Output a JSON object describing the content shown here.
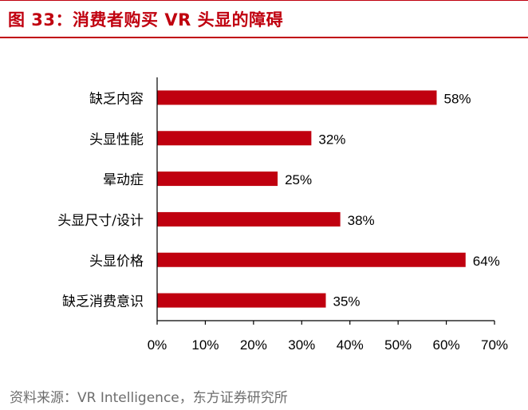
{
  "figure": {
    "title": "图 33：消费者购买 VR 头显的障碍",
    "source": "资料来源：VR Intelligence，东方证券研究所"
  },
  "colors": {
    "accent": "#c0000f",
    "bar": "#c0000f",
    "axis": "#000000",
    "source_text": "#6d6d6d"
  },
  "chart_data": {
    "type": "bar",
    "orientation": "horizontal",
    "categories": [
      "缺乏内容",
      "头显性能",
      "晕动症",
      "头显尺寸/设计",
      "头显价格",
      "缺乏消费意识"
    ],
    "values": [
      58,
      32,
      25,
      38,
      64,
      35
    ],
    "data_labels": [
      "58%",
      "32%",
      "25%",
      "38%",
      "64%",
      "35%"
    ],
    "xlim": [
      0,
      70
    ],
    "xticks": [
      0,
      10,
      20,
      30,
      40,
      50,
      60,
      70
    ],
    "xtick_labels": [
      "0%",
      "10%",
      "20%",
      "30%",
      "40%",
      "50%",
      "60%",
      "70%"
    ],
    "grid": false,
    "legend": "none"
  }
}
